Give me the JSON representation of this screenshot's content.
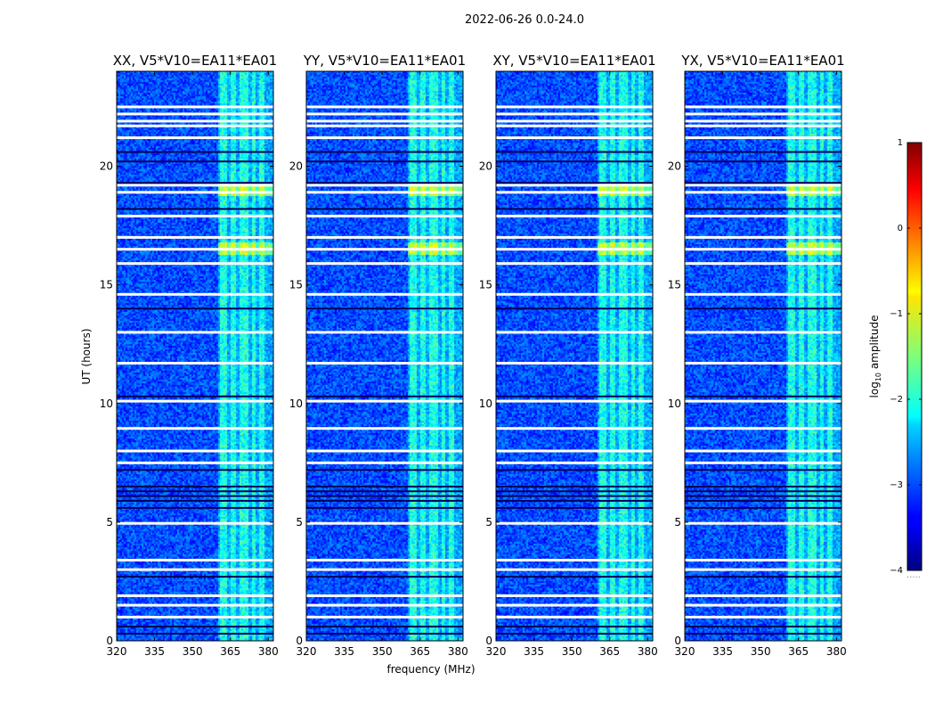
{
  "figure": {
    "suptitle": "2022-06-26 0.0-24.0",
    "xlabel": "frequency (MHz)",
    "ylabel": "UT (hours)",
    "colorbar_label_base": "log",
    "colorbar_label_sub": "10",
    "colorbar_label_rest": " amplitude",
    "colorbar_footnote": "....."
  },
  "colors": {
    "colormap": "jet",
    "gap": "#ffffff",
    "background": "#ffffff"
  },
  "chart_data": [
    {
      "type": "heatmap",
      "title": "XX, V5*V10=EA11*EA01",
      "xlabel": "frequency (MHz)",
      "ylabel": "UT (hours)",
      "xlim": [
        320,
        382
      ],
      "ylim": [
        0,
        24
      ],
      "xticks": [
        320,
        335,
        350,
        365,
        380
      ],
      "xtick_labels": [
        "320",
        "335",
        "350",
        "365",
        "380"
      ],
      "yticks": [
        0,
        5,
        10,
        15,
        20
      ],
      "ytick_labels": [
        "0",
        "5",
        "10",
        "15",
        "20"
      ],
      "rfi_band_mhz": [
        360,
        382
      ],
      "bright_bands_mhz": [
        [
          360.5,
          363.5
        ],
        [
          365,
          367
        ],
        [
          368.5,
          371.5
        ],
        [
          373,
          374.5
        ],
        [
          376,
          378
        ]
      ],
      "strong_rfi_hours": [
        [
          16.3,
          16.8
        ],
        [
          18.8,
          19.3
        ]
      ],
      "flagged_rows_hours": [
        1.0,
        1.5,
        1.9,
        3.0,
        3.4,
        4.95,
        7.5,
        8.0,
        8.95,
        10.1,
        11.7,
        13.0,
        14.6,
        15.9,
        16.5,
        17.0,
        17.9,
        18.9,
        19.2,
        21.2,
        21.7,
        21.9,
        22.2,
        22.5
      ],
      "dark_rows_hours": [
        0.3,
        0.6,
        2.7,
        5.6,
        5.9,
        6.1,
        6.3,
        6.5,
        7.2,
        10.3,
        14.0,
        18.2,
        19.3,
        20.2,
        20.6
      ],
      "clim": [
        -4,
        1
      ]
    },
    {
      "type": "heatmap",
      "title": "YY, V5*V10=EA11*EA01",
      "xlabel": "frequency (MHz)",
      "ylabel": "UT (hours)",
      "xlim": [
        320,
        382
      ],
      "ylim": [
        0,
        24
      ],
      "xticks": [
        320,
        335,
        350,
        365,
        380
      ],
      "xtick_labels": [
        "320",
        "335",
        "350",
        "365",
        "380"
      ],
      "yticks": [
        0,
        5,
        10,
        15,
        20
      ],
      "ytick_labels": [
        "0",
        "5",
        "10",
        "15",
        "20"
      ],
      "rfi_band_mhz": [
        360,
        382
      ],
      "bright_bands_mhz": [
        [
          360.5,
          363.5
        ],
        [
          365,
          367
        ],
        [
          368.5,
          371.5
        ],
        [
          373,
          374.5
        ],
        [
          376,
          378
        ]
      ],
      "strong_rfi_hours": [
        [
          16.3,
          16.8
        ],
        [
          18.8,
          19.3
        ]
      ],
      "flagged_rows_hours": [
        1.0,
        1.5,
        1.9,
        3.0,
        3.4,
        4.95,
        7.5,
        8.0,
        8.95,
        10.1,
        11.7,
        13.0,
        14.6,
        15.9,
        16.5,
        17.0,
        17.9,
        18.9,
        19.2,
        21.2,
        21.7,
        21.9,
        22.2,
        22.5
      ],
      "dark_rows_hours": [
        0.3,
        0.6,
        2.7,
        5.6,
        5.9,
        6.1,
        6.3,
        6.5,
        7.2,
        10.3,
        14.0,
        18.2,
        19.3,
        20.2,
        20.6
      ],
      "clim": [
        -4,
        1
      ]
    },
    {
      "type": "heatmap",
      "title": "XY, V5*V10=EA11*EA01",
      "xlabel": "frequency (MHz)",
      "ylabel": "UT (hours)",
      "xlim": [
        320,
        382
      ],
      "ylim": [
        0,
        24
      ],
      "xticks": [
        320,
        335,
        350,
        365,
        380
      ],
      "xtick_labels": [
        "320",
        "335",
        "350",
        "365",
        "380"
      ],
      "yticks": [
        0,
        5,
        10,
        15,
        20
      ],
      "ytick_labels": [
        "0",
        "5",
        "10",
        "15",
        "20"
      ],
      "rfi_band_mhz": [
        360,
        382
      ],
      "bright_bands_mhz": [
        [
          360.5,
          363.5
        ],
        [
          365,
          367
        ],
        [
          368.5,
          371.5
        ],
        [
          373,
          374.5
        ],
        [
          376,
          378
        ]
      ],
      "strong_rfi_hours": [
        [
          16.3,
          16.8
        ],
        [
          18.8,
          19.3
        ]
      ],
      "flagged_rows_hours": [
        1.0,
        1.5,
        1.9,
        3.0,
        3.4,
        4.95,
        7.5,
        8.0,
        8.95,
        10.1,
        11.7,
        13.0,
        14.6,
        15.9,
        16.5,
        17.0,
        17.9,
        18.9,
        19.2,
        21.2,
        21.7,
        21.9,
        22.2,
        22.5
      ],
      "dark_rows_hours": [
        0.3,
        0.6,
        2.7,
        5.6,
        5.9,
        6.1,
        6.3,
        6.5,
        7.2,
        10.3,
        14.0,
        18.2,
        19.3,
        20.2,
        20.6
      ],
      "clim": [
        -4,
        1
      ]
    },
    {
      "type": "heatmap",
      "title": "YX, V5*V10=EA11*EA01",
      "xlabel": "frequency (MHz)",
      "ylabel": "UT (hours)",
      "xlim": [
        320,
        382
      ],
      "ylim": [
        0,
        24
      ],
      "xticks": [
        320,
        335,
        350,
        365,
        380
      ],
      "xtick_labels": [
        "320",
        "335",
        "350",
        "365",
        "380"
      ],
      "yticks": [
        0,
        5,
        10,
        15,
        20
      ],
      "ytick_labels": [
        "0",
        "5",
        "10",
        "15",
        "20"
      ],
      "rfi_band_mhz": [
        360,
        382
      ],
      "bright_bands_mhz": [
        [
          360.5,
          363.5
        ],
        [
          365,
          367
        ],
        [
          368.5,
          371.5
        ],
        [
          373,
          374.5
        ],
        [
          376,
          378
        ]
      ],
      "strong_rfi_hours": [
        [
          16.3,
          16.8
        ],
        [
          18.8,
          19.3
        ]
      ],
      "flagged_rows_hours": [
        1.0,
        1.5,
        1.9,
        3.0,
        3.4,
        4.95,
        7.5,
        8.0,
        8.95,
        10.1,
        11.7,
        13.0,
        14.6,
        15.9,
        16.5,
        17.0,
        17.9,
        18.9,
        19.2,
        21.2,
        21.7,
        21.9,
        22.2,
        22.5
      ],
      "dark_rows_hours": [
        0.3,
        0.6,
        2.7,
        5.6,
        5.9,
        6.1,
        6.3,
        6.5,
        7.2,
        10.3,
        14.0,
        18.2,
        19.3,
        20.2,
        20.6
      ],
      "clim": [
        -4,
        1
      ]
    }
  ],
  "colorbar": {
    "range": [
      -4,
      1
    ],
    "ticks": [
      1,
      0,
      -1,
      -2,
      -3,
      -4
    ],
    "tick_labels": [
      "1",
      "0",
      "−1",
      "−2",
      "−3",
      "−4"
    ]
  }
}
